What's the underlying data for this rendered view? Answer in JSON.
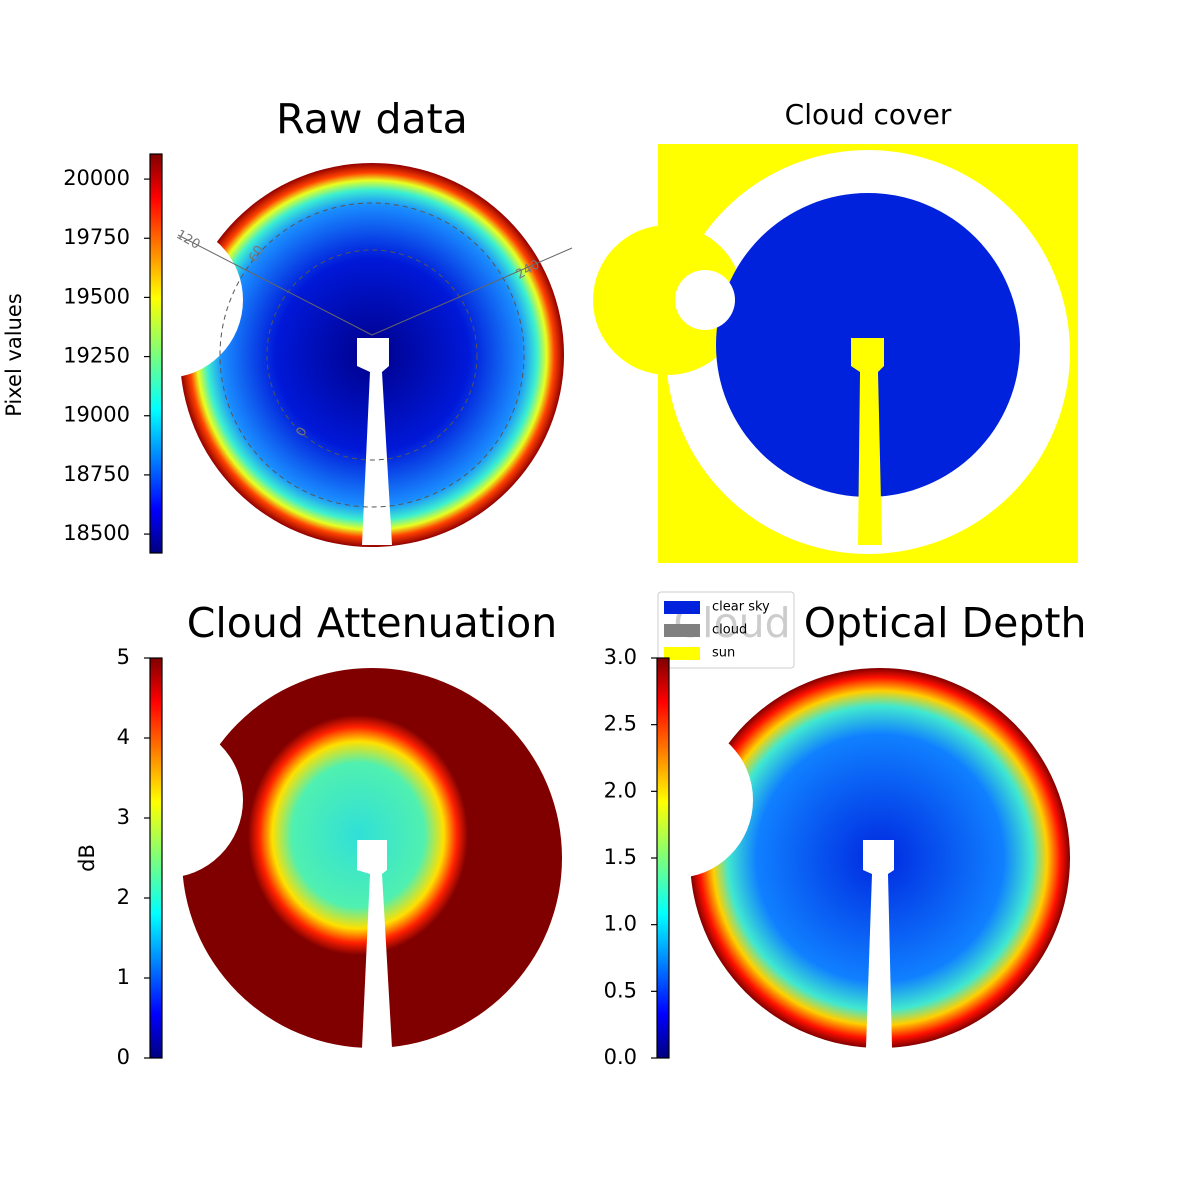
{
  "chart_data": [
    {
      "type": "heatmap",
      "title": "Raw data",
      "colorbar_label": "Pixel values",
      "colormap": "jet",
      "clim": [
        18420,
        20106
      ],
      "cticks": [
        18500,
        18750,
        19000,
        19250,
        19500,
        19750,
        20000
      ],
      "annotations": [
        "120",
        "60",
        "240",
        "0"
      ]
    },
    {
      "type": "mask",
      "title": "Cloud cover",
      "legend": [
        {
          "name": "clear sky",
          "color": "#0022dd"
        },
        {
          "name": "cloud",
          "color": "#808080"
        },
        {
          "name": "sun",
          "color": "#ffff00"
        }
      ]
    },
    {
      "type": "heatmap",
      "title": "Cloud Attenuation",
      "colorbar_label": "dB",
      "colormap": "jet",
      "clim": [
        0,
        5
      ],
      "cticks": [
        0,
        1,
        2,
        3,
        4,
        5
      ]
    },
    {
      "type": "heatmap",
      "title": "Cloud Optical Depth",
      "colormap": "jet",
      "clim": [
        0,
        3
      ],
      "cticks": [
        {
          "value": 0,
          "label": "0.0"
        },
        {
          "value": 0.5,
          "label": "0.5"
        },
        {
          "value": 1,
          "label": "1.0"
        },
        {
          "value": 1.5,
          "label": "1.5"
        },
        {
          "value": 2,
          "label": "2.0"
        },
        {
          "value": 2.5,
          "label": "2.5"
        },
        {
          "value": 3,
          "label": "3.0"
        }
      ]
    }
  ]
}
